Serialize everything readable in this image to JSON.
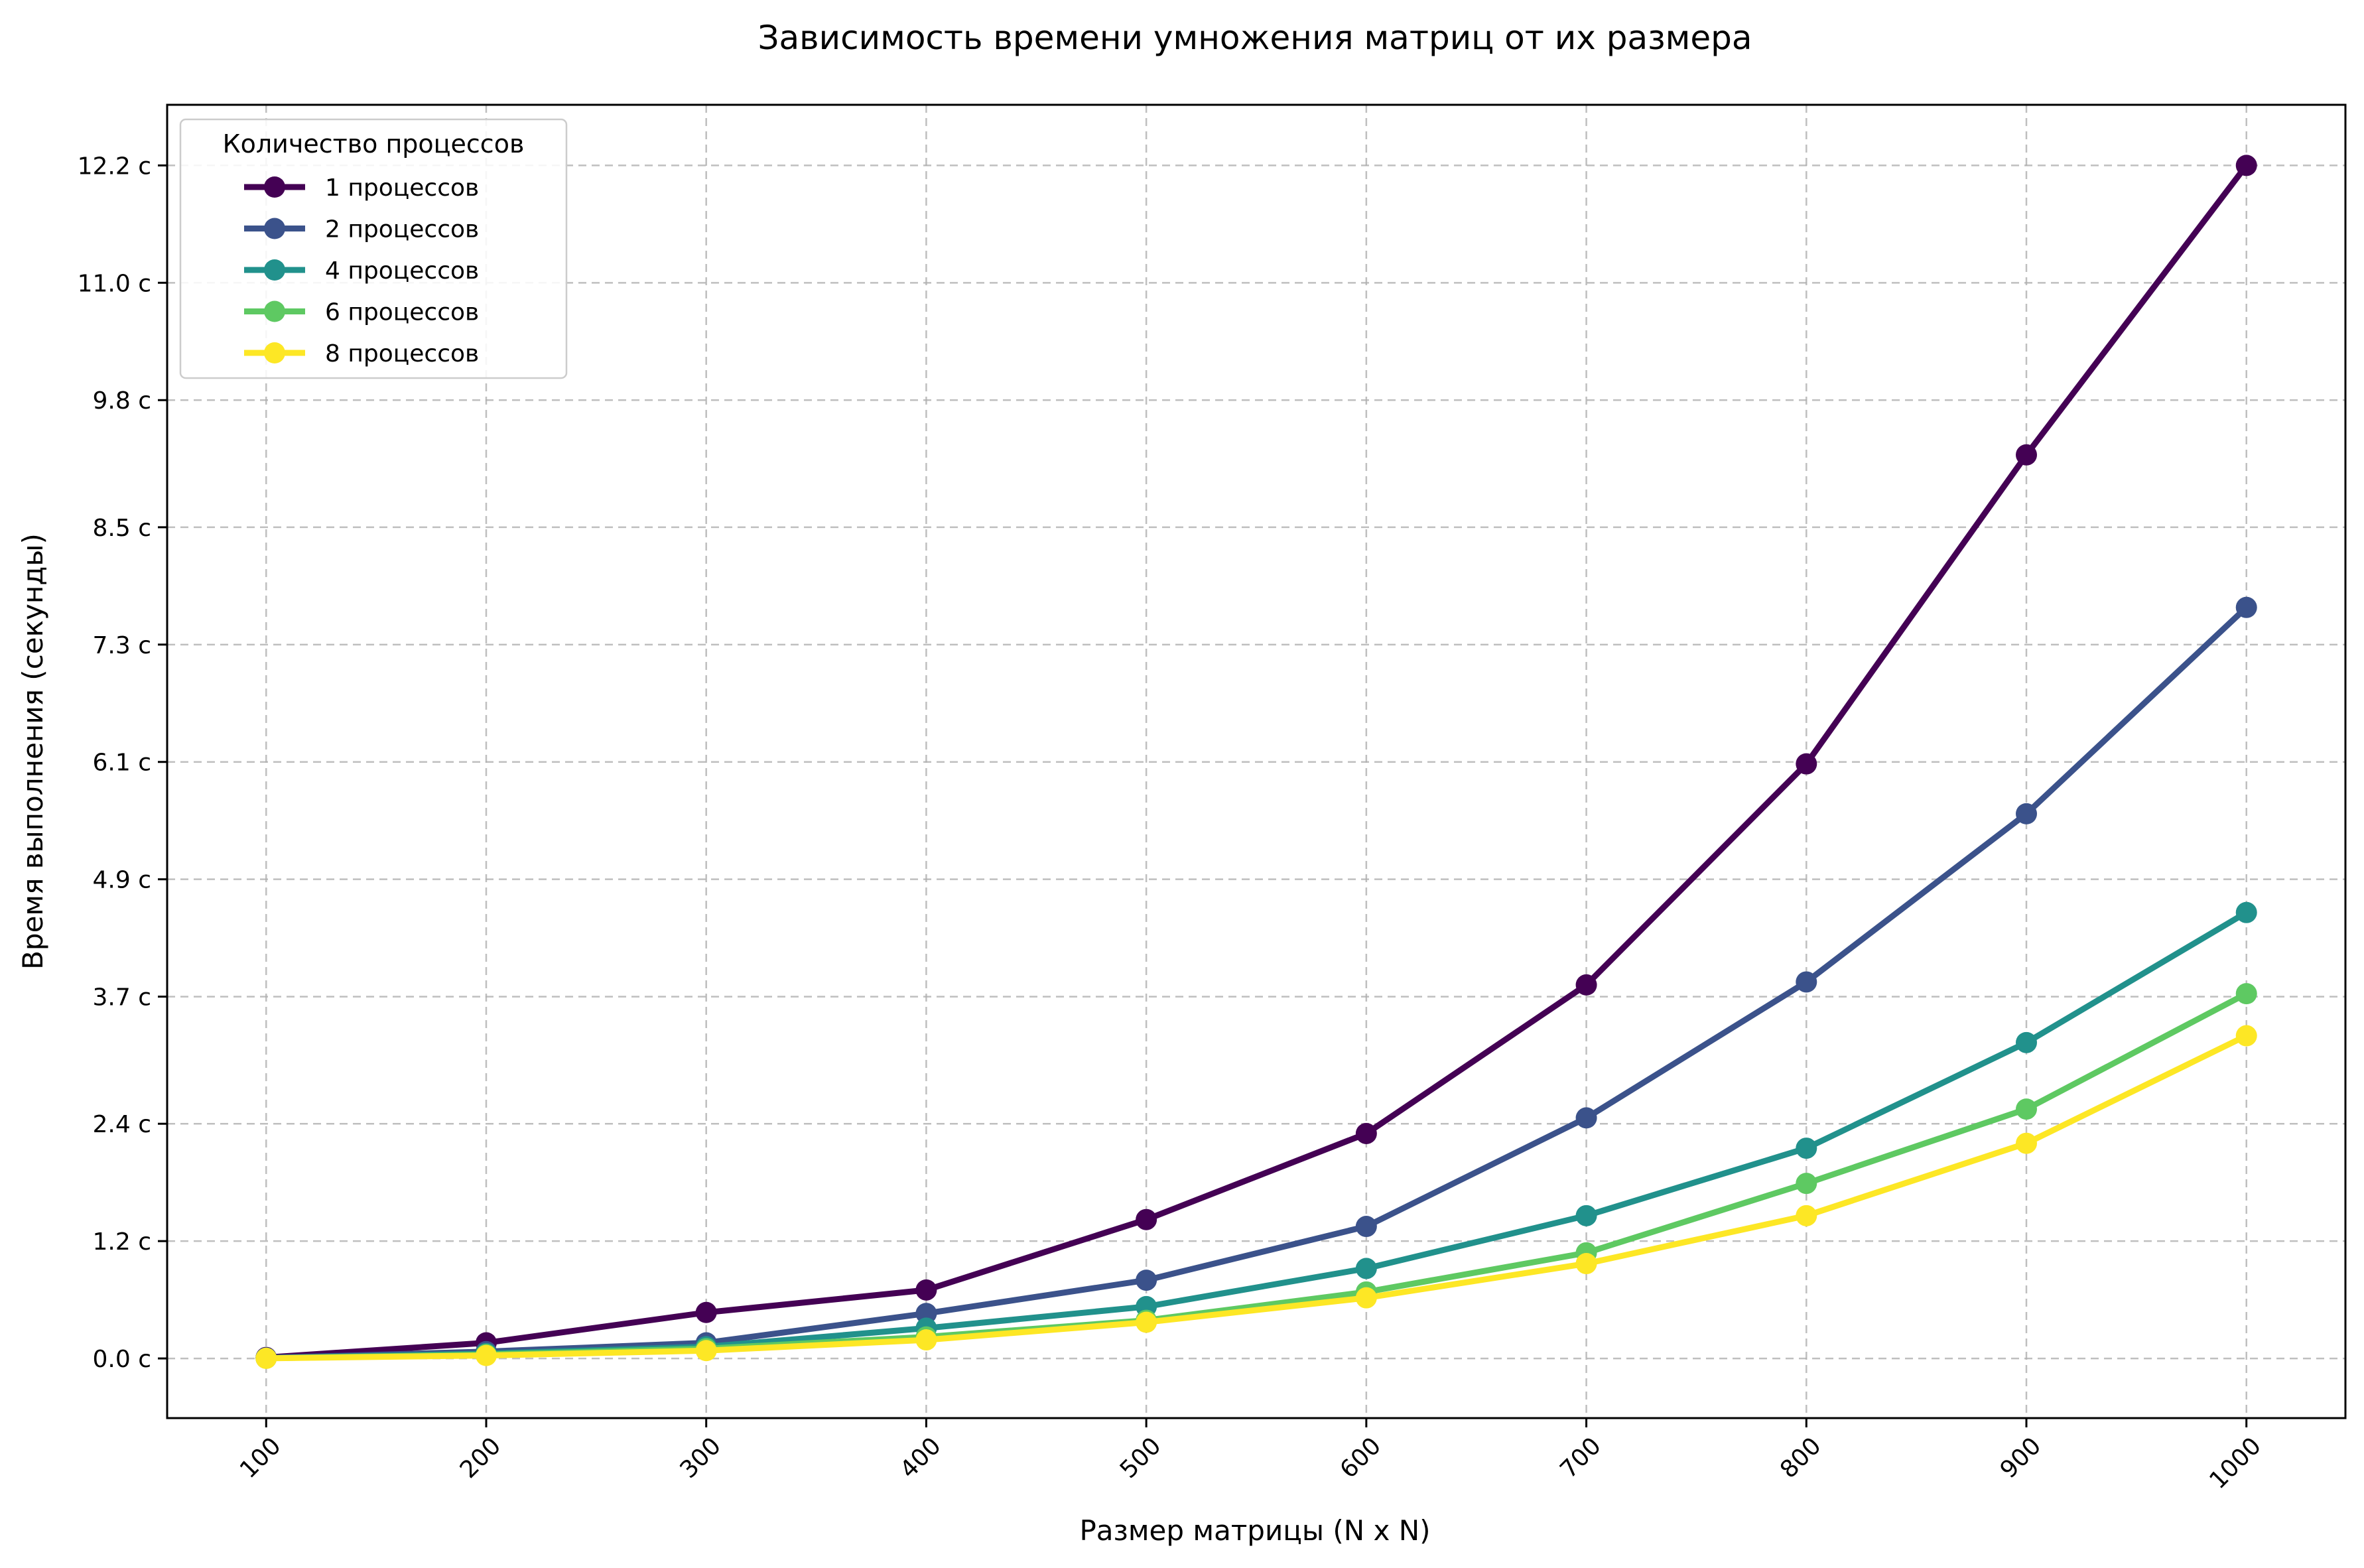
{
  "chart_data": {
    "type": "line",
    "title": "Зависимость времени умножения матриц от их размера",
    "xlabel": "Размер матрицы (N x N)",
    "ylabel": "Время выполнения (секунды)",
    "x": [
      100,
      200,
      300,
      400,
      500,
      600,
      700,
      800,
      900,
      1000
    ],
    "x_tick_labels": [
      "100",
      "200",
      "300",
      "400",
      "500",
      "600",
      "700",
      "800",
      "900",
      "1000"
    ],
    "y_ticks": [
      0.0,
      1.2,
      2.4,
      3.7,
      4.9,
      6.1,
      7.3,
      8.5,
      9.8,
      11.0,
      12.2
    ],
    "y_tick_labels": [
      "0.0 с",
      "1.2 с",
      "2.4 с",
      "3.7 с",
      "4.9 с",
      "6.1 с",
      "7.3 с",
      "8.5 с",
      "9.8 с",
      "11.0 с",
      "12.2 с"
    ],
    "xlim": [
      55,
      1045
    ],
    "ylim": [
      -0.61,
      12.82
    ],
    "grid": true,
    "legend": {
      "title": "Количество процессов",
      "placement": "top-left"
    },
    "series": [
      {
        "name": "1 процессов",
        "color": "#440154",
        "values": [
          0.01,
          0.16,
          0.47,
          0.7,
          1.42,
          2.3,
          3.82,
          6.08,
          9.24,
          12.2
        ]
      },
      {
        "name": "2 процессов",
        "color": "#3b528b",
        "values": [
          0.005,
          0.07,
          0.16,
          0.46,
          0.8,
          1.35,
          2.46,
          3.85,
          5.57,
          7.68
        ]
      },
      {
        "name": "4 процессов",
        "color": "#21918c",
        "values": [
          0.003,
          0.05,
          0.12,
          0.31,
          0.53,
          0.92,
          1.46,
          2.15,
          3.23,
          4.56
        ]
      },
      {
        "name": "6 процессов",
        "color": "#5ec962",
        "values": [
          0.002,
          0.04,
          0.1,
          0.22,
          0.39,
          0.68,
          1.08,
          1.79,
          2.55,
          3.73
        ]
      },
      {
        "name": "8 процессов",
        "color": "#fde725",
        "values": [
          0.001,
          0.03,
          0.08,
          0.19,
          0.37,
          0.62,
          0.97,
          1.46,
          2.2,
          3.3
        ]
      }
    ]
  }
}
